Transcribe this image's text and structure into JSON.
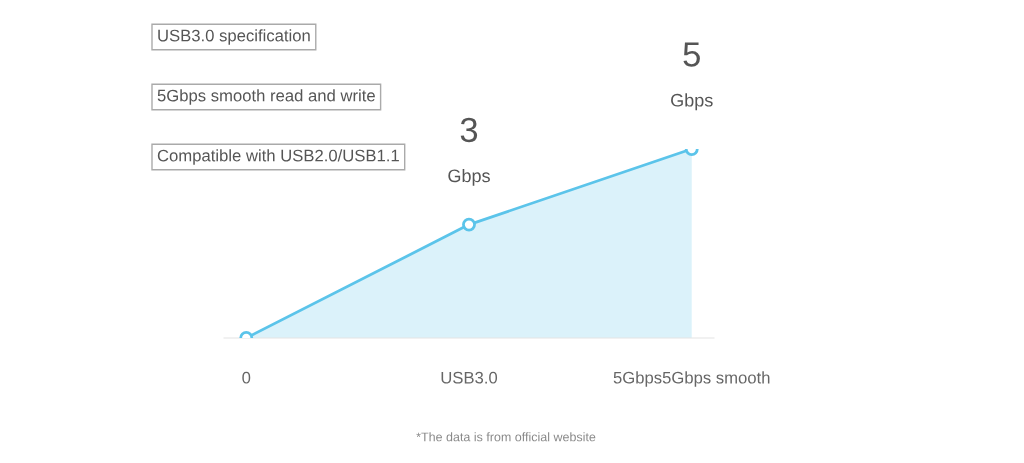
{
  "chart_data": {
    "type": "area",
    "categories": [
      "0",
      "USB3.0",
      "5Gbps5Gbps smooth"
    ],
    "values": [
      0,
      3,
      5
    ],
    "color": "#5bc4ea",
    "value_labels": [
      null,
      "3 Gbps",
      "5 Gbps"
    ],
    "marker": "circle",
    "line_style": "solid",
    "tick_labels": "x",
    "annotations": [
      "USB3.0 specification",
      "5Gbps smooth read and write",
      "Compatible with USB2.0/USB1.1",
      "*The data is from official website"
    ]
  }
}
